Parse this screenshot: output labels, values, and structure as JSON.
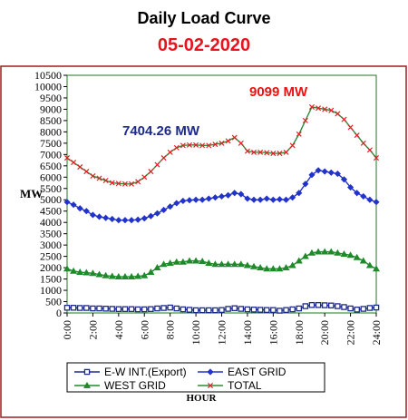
{
  "title": "Daily Load Curve",
  "date": "05-02-2020",
  "colors": {
    "title": "#000000",
    "date": "#e8141c",
    "frame": "#a01c24",
    "plot_border": "#1f7a1f",
    "ew": "#1c2a8c",
    "east": "#2233cc",
    "west": "#1f8a2a",
    "total_line": "#2e8b3a",
    "total_marker": "#dd2222",
    "annotation_total": "#ee1111",
    "annotation_east": "#1c2a8c"
  },
  "chart_data": {
    "type": "line",
    "title": "Daily Load Curve",
    "subtitle": "05-02-2020",
    "xlabel": "HOUR",
    "ylabel": "MW",
    "ylim": [
      0,
      10500
    ],
    "yticks": [
      0,
      500,
      1000,
      1500,
      2000,
      2500,
      3000,
      3500,
      4000,
      4500,
      5000,
      5500,
      6000,
      6500,
      7000,
      7500,
      8000,
      8500,
      9000,
      9500,
      10000,
      10500
    ],
    "xticks": [
      "0:00",
      "2:00",
      "4:00",
      "6:00",
      "8:00",
      "10:00",
      "12:00",
      "14:00",
      "16:00",
      "18:00",
      "20:00",
      "22:00",
      "24:00"
    ],
    "grid": false,
    "legend_position": "bottom",
    "x": [
      0,
      0.5,
      1,
      1.5,
      2,
      2.5,
      3,
      3.5,
      4,
      4.5,
      5,
      5.5,
      6,
      6.5,
      7,
      7.5,
      8,
      8.5,
      9,
      9.5,
      10,
      10.5,
      11,
      11.5,
      12,
      12.5,
      13,
      13.5,
      14,
      14.5,
      15,
      15.5,
      16,
      16.5,
      17,
      17.5,
      18,
      18.5,
      19,
      19.5,
      20,
      20.5,
      21,
      21.5,
      22,
      22.5,
      23,
      23.5,
      24
    ],
    "series": [
      {
        "name": "E-W INT.(Export)",
        "marker": "square",
        "values": [
          230,
          230,
          220,
          220,
          200,
          200,
          190,
          180,
          170,
          170,
          170,
          160,
          160,
          170,
          200,
          220,
          240,
          200,
          160,
          140,
          120,
          120,
          120,
          120,
          130,
          180,
          210,
          180,
          160,
          150,
          140,
          130,
          130,
          100,
          130,
          160,
          200,
          300,
          350,
          350,
          340,
          330,
          300,
          260,
          200,
          150,
          180,
          220,
          240
        ]
      },
      {
        "name": "EAST GRID",
        "marker": "diamond",
        "values": [
          4900,
          4780,
          4620,
          4500,
          4330,
          4250,
          4200,
          4150,
          4100,
          4100,
          4100,
          4120,
          4180,
          4280,
          4400,
          4550,
          4700,
          4850,
          4950,
          4980,
          5000,
          5000,
          5050,
          5100,
          5150,
          5200,
          5300,
          5250,
          5050,
          5000,
          5000,
          5050,
          5000,
          5020,
          5000,
          5100,
          5300,
          5700,
          6100,
          6300,
          6250,
          6200,
          6150,
          5900,
          5550,
          5300,
          5150,
          5000,
          4900
        ]
      },
      {
        "name": "WEST GRID",
        "marker": "triangle",
        "values": [
          1950,
          1850,
          1800,
          1780,
          1750,
          1700,
          1650,
          1620,
          1600,
          1600,
          1600,
          1620,
          1650,
          1800,
          2000,
          2150,
          2200,
          2250,
          2250,
          2300,
          2300,
          2280,
          2200,
          2150,
          2150,
          2150,
          2150,
          2150,
          2100,
          2050,
          2000,
          1950,
          1950,
          1950,
          2000,
          2100,
          2300,
          2500,
          2650,
          2700,
          2700,
          2700,
          2650,
          2600,
          2550,
          2450,
          2300,
          2100,
          1950
        ]
      },
      {
        "name": "TOTAL",
        "marker": "x",
        "values": [
          6850,
          6650,
          6450,
          6250,
          6050,
          5950,
          5850,
          5750,
          5720,
          5700,
          5700,
          5800,
          6000,
          6250,
          6550,
          6850,
          7100,
          7300,
          7400,
          7420,
          7420,
          7400,
          7400,
          7450,
          7500,
          7600,
          7750,
          7500,
          7150,
          7100,
          7100,
          7080,
          7050,
          7050,
          7100,
          7400,
          7900,
          8500,
          9099,
          9050,
          9000,
          8950,
          8800,
          8550,
          8200,
          7850,
          7500,
          7200,
          6850
        ]
      }
    ],
    "annotations": [
      {
        "text": "9099 MW",
        "x": 19,
        "y": 9099,
        "series": "TOTAL"
      },
      {
        "text": "7404.26 MW",
        "x": 9.5,
        "y": 7404.26,
        "series": "EAST GRID"
      }
    ]
  }
}
